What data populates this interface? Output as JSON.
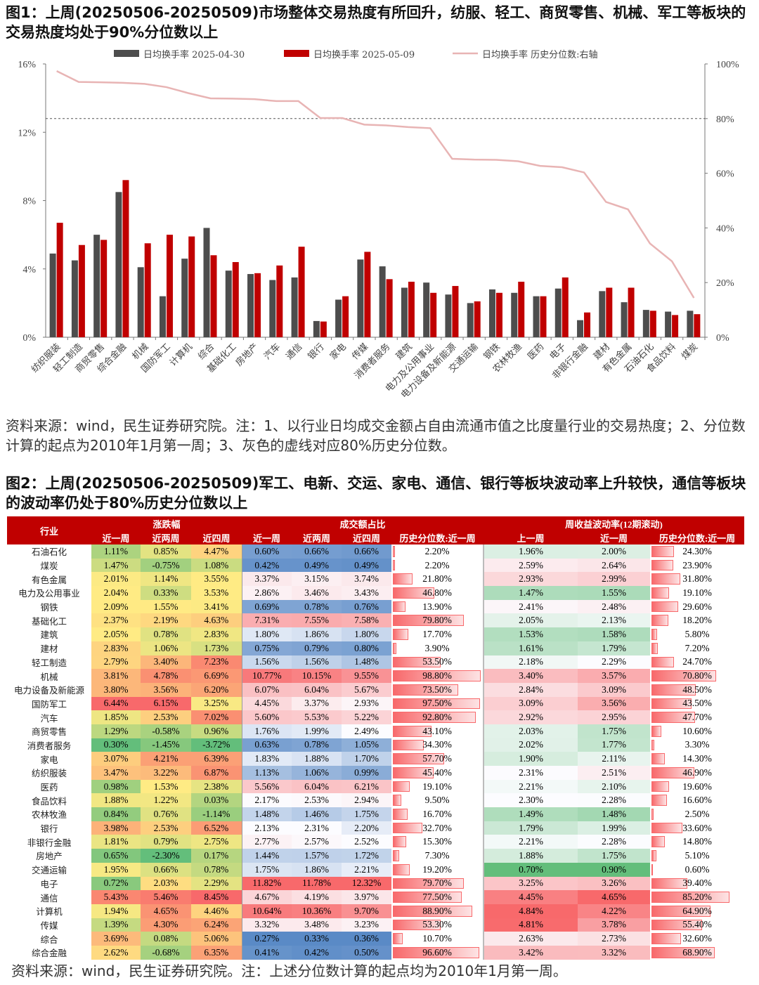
{
  "figure1": {
    "title": "图1：上周(20250506-20250509)市场整体交易热度有所回升，纺服、轻工、商贸零售、机械、军工等板块的交易热度均处于90%分位数以上",
    "note": "资料来源：wind，民生证券研究院。注：1、以行业日均成交金额占自由流通市值之比度量行业的交易热度；2、分位数计算的起点为2010年1月第一周；3、灰色的虚线对应80%历史分位数。"
  },
  "chart_data": {
    "type": "bar",
    "categories": [
      "纺织服装",
      "轻工制造",
      "商贸零售",
      "综合金融",
      "机械",
      "国防军工",
      "计算机",
      "综合",
      "基础化工",
      "房地产",
      "汽车",
      "通信",
      "银行",
      "家电",
      "传媒",
      "消费者服务",
      "建筑",
      "电力及公用事业",
      "电力设备及新能源",
      "交通运输",
      "钢铁",
      "农林牧渔",
      "医药",
      "电子",
      "非银行金融",
      "建材",
      "有色金属",
      "石油石化",
      "食品饮料",
      "煤炭"
    ],
    "series": [
      {
        "name": "日均换手率 2025-04-30",
        "type": "bar",
        "axis": "left",
        "color": "#4d4d4d",
        "values": [
          4.9,
          4.5,
          6.0,
          8.5,
          4.1,
          2.4,
          4.6,
          6.4,
          3.9,
          3.7,
          3.35,
          3.5,
          0.95,
          2.2,
          4.55,
          4.15,
          2.9,
          3.2,
          2.5,
          2.0,
          2.8,
          2.6,
          2.4,
          2.85,
          1.0,
          2.7,
          2.05,
          1.6,
          1.5,
          1.55
        ]
      },
      {
        "name": "日均换手率 2025-05-09",
        "type": "bar",
        "axis": "left",
        "color": "#c00000",
        "values": [
          6.7,
          5.4,
          5.7,
          9.2,
          5.5,
          6.0,
          5.9,
          4.8,
          4.4,
          3.75,
          4.2,
          5.3,
          0.92,
          2.4,
          5.0,
          3.4,
          3.25,
          2.6,
          3.0,
          2.1,
          2.6,
          3.25,
          2.4,
          3.5,
          1.45,
          2.9,
          2.9,
          1.55,
          1.3,
          1.35
        ]
      },
      {
        "name": "日均换手率 历史分位数:右轴",
        "type": "line",
        "axis": "right",
        "color": "#e8b4b4",
        "values": [
          97.4,
          93.4,
          93.3,
          93.1,
          92.7,
          91.5,
          89.3,
          87.4,
          87.3,
          87.1,
          86.4,
          86.4,
          80.2,
          80.2,
          77.8,
          77.5,
          76.9,
          76.5,
          65.3,
          65.0,
          64.9,
          64.4,
          62.7,
          62.2,
          60.3,
          49.5,
          46.8,
          34.3,
          27.8,
          14.4
        ]
      }
    ],
    "reference_line": {
      "axis": "right",
      "value": 80,
      "style": "dashed",
      "color": "#555555"
    },
    "ylim_left": [
      0,
      16
    ],
    "yticks_left": [
      "0%",
      "4%",
      "8%",
      "12%",
      "16%"
    ],
    "ylim_right": [
      0,
      100
    ],
    "yticks_right": [
      "0%",
      "20%",
      "40%",
      "60%",
      "80%",
      "100%"
    ],
    "legend": "top",
    "grid": false
  },
  "figure2": {
    "title": "图2：上周(20250506-20250509)军工、电新、交运、家电、通信、银行等板块波动率上升较快，通信等板块的波动率仍处于80%历史分位数以上",
    "note": "资料来源：wind，民生证券研究院。注：上述分位数计算的起点均为2010年1月第一周。"
  },
  "table": {
    "groups": [
      "行业",
      "涨跌幅",
      "成交额占比",
      "周收益波动率(12期滚动)"
    ],
    "columns": [
      "近一周",
      "近两周",
      "近四周",
      "近一周",
      "近两周",
      "近四周",
      "历史分位数:近一周",
      "上一周",
      "近一周",
      "历史分位数:近一周"
    ],
    "rows": [
      [
        "石油石化",
        "1.11%",
        "0.85%",
        "4.47%",
        "0.60%",
        "0.66%",
        "0.66%",
        "2.20%",
        "1.96%",
        "2.00%",
        "24.30%"
      ],
      [
        "煤炭",
        "1.47%",
        "-0.75%",
        "1.08%",
        "0.42%",
        "0.49%",
        "0.49%",
        "2.20%",
        "2.59%",
        "2.64%",
        "23.90%"
      ],
      [
        "有色金属",
        "2.01%",
        "1.14%",
        "3.55%",
        "3.37%",
        "3.15%",
        "3.74%",
        "21.80%",
        "2.93%",
        "2.99%",
        "31.80%"
      ],
      [
        "电力及公用事业",
        "2.04%",
        "0.33%",
        "3.53%",
        "2.86%",
        "3.46%",
        "3.43%",
        "46.80%",
        "1.47%",
        "1.55%",
        "19.10%"
      ],
      [
        "钢铁",
        "2.09%",
        "1.55%",
        "3.41%",
        "0.69%",
        "0.78%",
        "0.76%",
        "13.90%",
        "2.41%",
        "2.48%",
        "29.60%"
      ],
      [
        "基础化工",
        "2.37%",
        "2.19%",
        "4.63%",
        "7.31%",
        "7.55%",
        "7.58%",
        "79.80%",
        "2.05%",
        "2.13%",
        "18.20%"
      ],
      [
        "建筑",
        "2.05%",
        "0.78%",
        "2.83%",
        "1.80%",
        "1.86%",
        "1.80%",
        "17.70%",
        "1.53%",
        "1.58%",
        "5.80%"
      ],
      [
        "建材",
        "2.83%",
        "1.06%",
        "1.73%",
        "0.75%",
        "0.79%",
        "0.80%",
        "3.90%",
        "1.61%",
        "1.79%",
        "7.20%"
      ],
      [
        "轻工制造",
        "2.79%",
        "3.40%",
        "7.23%",
        "1.56%",
        "1.56%",
        "1.48%",
        "53.50%",
        "2.18%",
        "2.29%",
        "24.70%"
      ],
      [
        "机械",
        "3.81%",
        "4.78%",
        "6.69%",
        "10.77%",
        "10.15%",
        "9.55%",
        "98.80%",
        "3.40%",
        "3.57%",
        "70.80%"
      ],
      [
        "电力设备及新能源",
        "3.80%",
        "3.56%",
        "6.20%",
        "6.07%",
        "6.04%",
        "5.67%",
        "73.50%",
        "2.84%",
        "3.09%",
        "48.50%"
      ],
      [
        "国防军工",
        "6.44%",
        "6.15%",
        "3.25%",
        "4.45%",
        "3.37%",
        "2.93%",
        "97.50%",
        "3.09%",
        "3.56%",
        "43.50%"
      ],
      [
        "汽车",
        "1.85%",
        "2.53%",
        "7.02%",
        "5.60%",
        "5.53%",
        "5.22%",
        "92.80%",
        "2.92%",
        "2.95%",
        "47.70%"
      ],
      [
        "商贸零售",
        "1.29%",
        "-0.58%",
        "0.96%",
        "1.76%",
        "1.99%",
        "2.49%",
        "43.10%",
        "2.03%",
        "1.75%",
        "10.60%"
      ],
      [
        "消费者服务",
        "0.30%",
        "-1.45%",
        "-3.72%",
        "0.63%",
        "0.78%",
        "1.05%",
        "34.30%",
        "2.02%",
        "1.77%",
        "3.30%"
      ],
      [
        "家电",
        "3.07%",
        "4.21%",
        "6.39%",
        "1.83%",
        "1.88%",
        "1.70%",
        "57.70%",
        "1.90%",
        "2.11%",
        "14.30%"
      ],
      [
        "纺织服装",
        "3.47%",
        "3.22%",
        "6.87%",
        "1.13%",
        "1.06%",
        "0.99%",
        "45.40%",
        "2.31%",
        "2.51%",
        "46.90%"
      ],
      [
        "医药",
        "0.98%",
        "1.53%",
        "2.38%",
        "5.56%",
        "6.04%",
        "6.21%",
        "19.10%",
        "2.21%",
        "2.10%",
        "19.60%"
      ],
      [
        "食品饮料",
        "1.88%",
        "1.22%",
        "0.03%",
        "2.17%",
        "2.53%",
        "2.94%",
        "9.50%",
        "2.30%",
        "2.28%",
        "16.60%"
      ],
      [
        "农林牧渔",
        "0.84%",
        "0.76%",
        "-1.14%",
        "1.48%",
        "1.46%",
        "1.75%",
        "16.70%",
        "1.49%",
        "1.48%",
        "2.50%"
      ],
      [
        "银行",
        "3.98%",
        "2.53%",
        "6.52%",
        "2.13%",
        "2.31%",
        "2.20%",
        "32.70%",
        "1.79%",
        "1.99%",
        "33.60%"
      ],
      [
        "非银行金融",
        "1.81%",
        "0.79%",
        "2.75%",
        "2.77%",
        "2.57%",
        "2.52%",
        "15.30%",
        "2.21%",
        "2.28%",
        "14.80%"
      ],
      [
        "房地产",
        "0.65%",
        "-2.30%",
        "0.17%",
        "1.44%",
        "1.57%",
        "1.72%",
        "7.30%",
        "1.88%",
        "1.75%",
        "5.10%"
      ],
      [
        "交通运输",
        "1.95%",
        "0.66%",
        "0.78%",
        "1.75%",
        "1.86%",
        "2.21%",
        "19.20%",
        "0.70%",
        "0.90%",
        "0.60%"
      ],
      [
        "电子",
        "0.72%",
        "2.03%",
        "2.29%",
        "11.82%",
        "11.78%",
        "12.32%",
        "79.70%",
        "3.25%",
        "3.26%",
        "39.40%"
      ],
      [
        "通信",
        "5.43%",
        "5.46%",
        "8.45%",
        "4.67%",
        "4.19%",
        "3.97%",
        "77.50%",
        "4.45%",
        "4.65%",
        "85.20%"
      ],
      [
        "计算机",
        "1.94%",
        "4.65%",
        "4.46%",
        "10.64%",
        "10.36%",
        "9.70%",
        "88.90%",
        "4.84%",
        "4.22%",
        "64.90%"
      ],
      [
        "传媒",
        "1.39%",
        "4.30%",
        "6.24%",
        "3.32%",
        "3.48%",
        "3.23%",
        "53.30%",
        "4.81%",
        "3.78%",
        "55.40%"
      ],
      [
        "综合",
        "3.69%",
        "0.08%",
        "5.06%",
        "0.27%",
        "0.33%",
        "0.36%",
        "10.70%",
        "2.63%",
        "2.73%",
        "32.60%"
      ],
      [
        "综合金融",
        "2.62%",
        "-0.68%",
        "6.35%",
        "0.41%",
        "0.42%",
        "0.50%",
        "96.60%",
        "3.42%",
        "3.32%",
        "68.90%"
      ]
    ],
    "color_scales": {
      "return": [
        "#63BE7B",
        "#FFEB84",
        "#F8696B"
      ],
      "turnover_share": [
        "#5A8AC6",
        "#FCFCFF",
        "#F8696B"
      ],
      "volatility": [
        "#63BE7B",
        "#FCFCFF",
        "#F8696B"
      ],
      "percentile_bar": "#F8696B"
    }
  }
}
